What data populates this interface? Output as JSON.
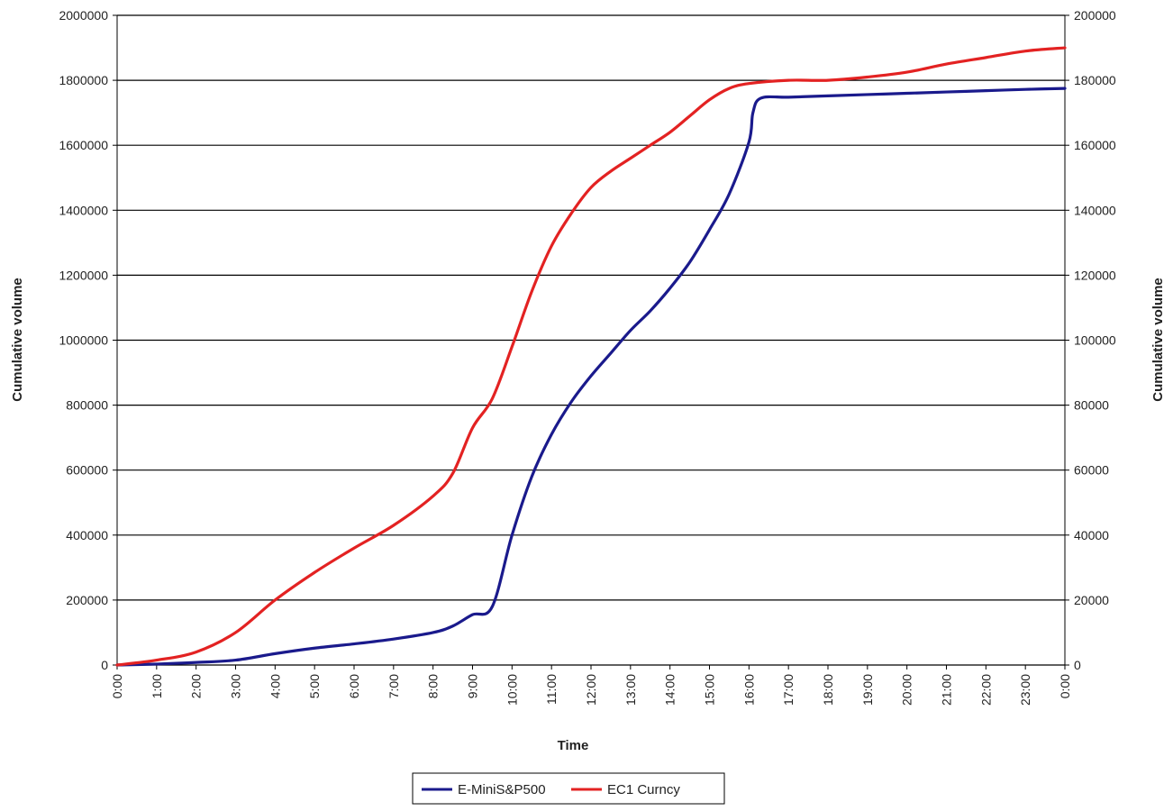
{
  "chart_data": {
    "type": "line",
    "xlabel": "Time",
    "ylabel_left": "Cumulative volume",
    "ylabel_right": "Cumulative volume",
    "x_ticks": [
      "0:00",
      "1:00",
      "2:00",
      "3:00",
      "4:00",
      "5:00",
      "6:00",
      "7:00",
      "8:00",
      "9:00",
      "10:00",
      "11:00",
      "12:00",
      "13:00",
      "14:00",
      "15:00",
      "16:00",
      "17:00",
      "18:00",
      "19:00",
      "20:00",
      "21:00",
      "22:00",
      "23:00",
      "0:00"
    ],
    "xlim": [
      0,
      24
    ],
    "ylim_left": [
      0,
      2000000
    ],
    "ylim_right": [
      0,
      200000
    ],
    "y_ticks_left": [
      "0",
      "200000",
      "400000",
      "600000",
      "800000",
      "1000000",
      "1200000",
      "1400000",
      "1600000",
      "1800000",
      "2000000"
    ],
    "y_ticks_right": [
      "0",
      "20000",
      "40000",
      "60000",
      "80000",
      "100000",
      "120000",
      "140000",
      "160000",
      "180000",
      "200000"
    ],
    "grid": true,
    "legend_position": "bottom-center",
    "series": [
      {
        "name": "E-MiniS&P500",
        "axis": "left",
        "color": "#1a1a8c",
        "x": [
          0,
          1,
          2,
          3,
          4,
          5,
          6,
          7,
          8,
          8.5,
          9,
          9.5,
          10,
          10.5,
          11,
          11.5,
          12,
          12.5,
          13,
          13.5,
          14,
          14.5,
          15,
          15.5,
          16,
          16.1,
          16.3,
          17,
          18,
          19,
          20,
          21,
          22,
          23,
          24
        ],
        "y": [
          0,
          3000,
          8000,
          15000,
          35000,
          52000,
          65000,
          80000,
          100000,
          120000,
          155000,
          180000,
          400000,
          580000,
          710000,
          810000,
          890000,
          960000,
          1030000,
          1090000,
          1160000,
          1240000,
          1340000,
          1450000,
          1610000,
          1700000,
          1745000,
          1748000,
          1752000,
          1756000,
          1760000,
          1764000,
          1768000,
          1772000,
          1775000
        ]
      },
      {
        "name": "EC1 Curncy",
        "axis": "right",
        "color": "#e32222",
        "x": [
          0,
          1,
          2,
          3,
          4,
          5,
          6,
          7,
          8,
          8.5,
          9,
          9.5,
          10,
          10.5,
          11,
          11.5,
          12,
          12.5,
          13,
          13.5,
          14,
          14.5,
          15,
          15.5,
          16,
          17,
          18,
          19,
          20,
          21,
          22,
          23,
          24
        ],
        "y": [
          0,
          1500,
          4000,
          10000,
          20000,
          28500,
          36000,
          43000,
          52000,
          59000,
          73000,
          82000,
          98000,
          115000,
          129000,
          139000,
          147000,
          152000,
          156000,
          160000,
          164000,
          169000,
          174000,
          177500,
          179000,
          180000,
          180000,
          181000,
          182500,
          185000,
          187000,
          189000,
          190000
        ]
      }
    ]
  },
  "legend": {
    "items": [
      {
        "label": "E-MiniS&P500",
        "color": "#1a1a8c"
      },
      {
        "label": "EC1 Curncy",
        "color": "#e32222"
      }
    ]
  }
}
